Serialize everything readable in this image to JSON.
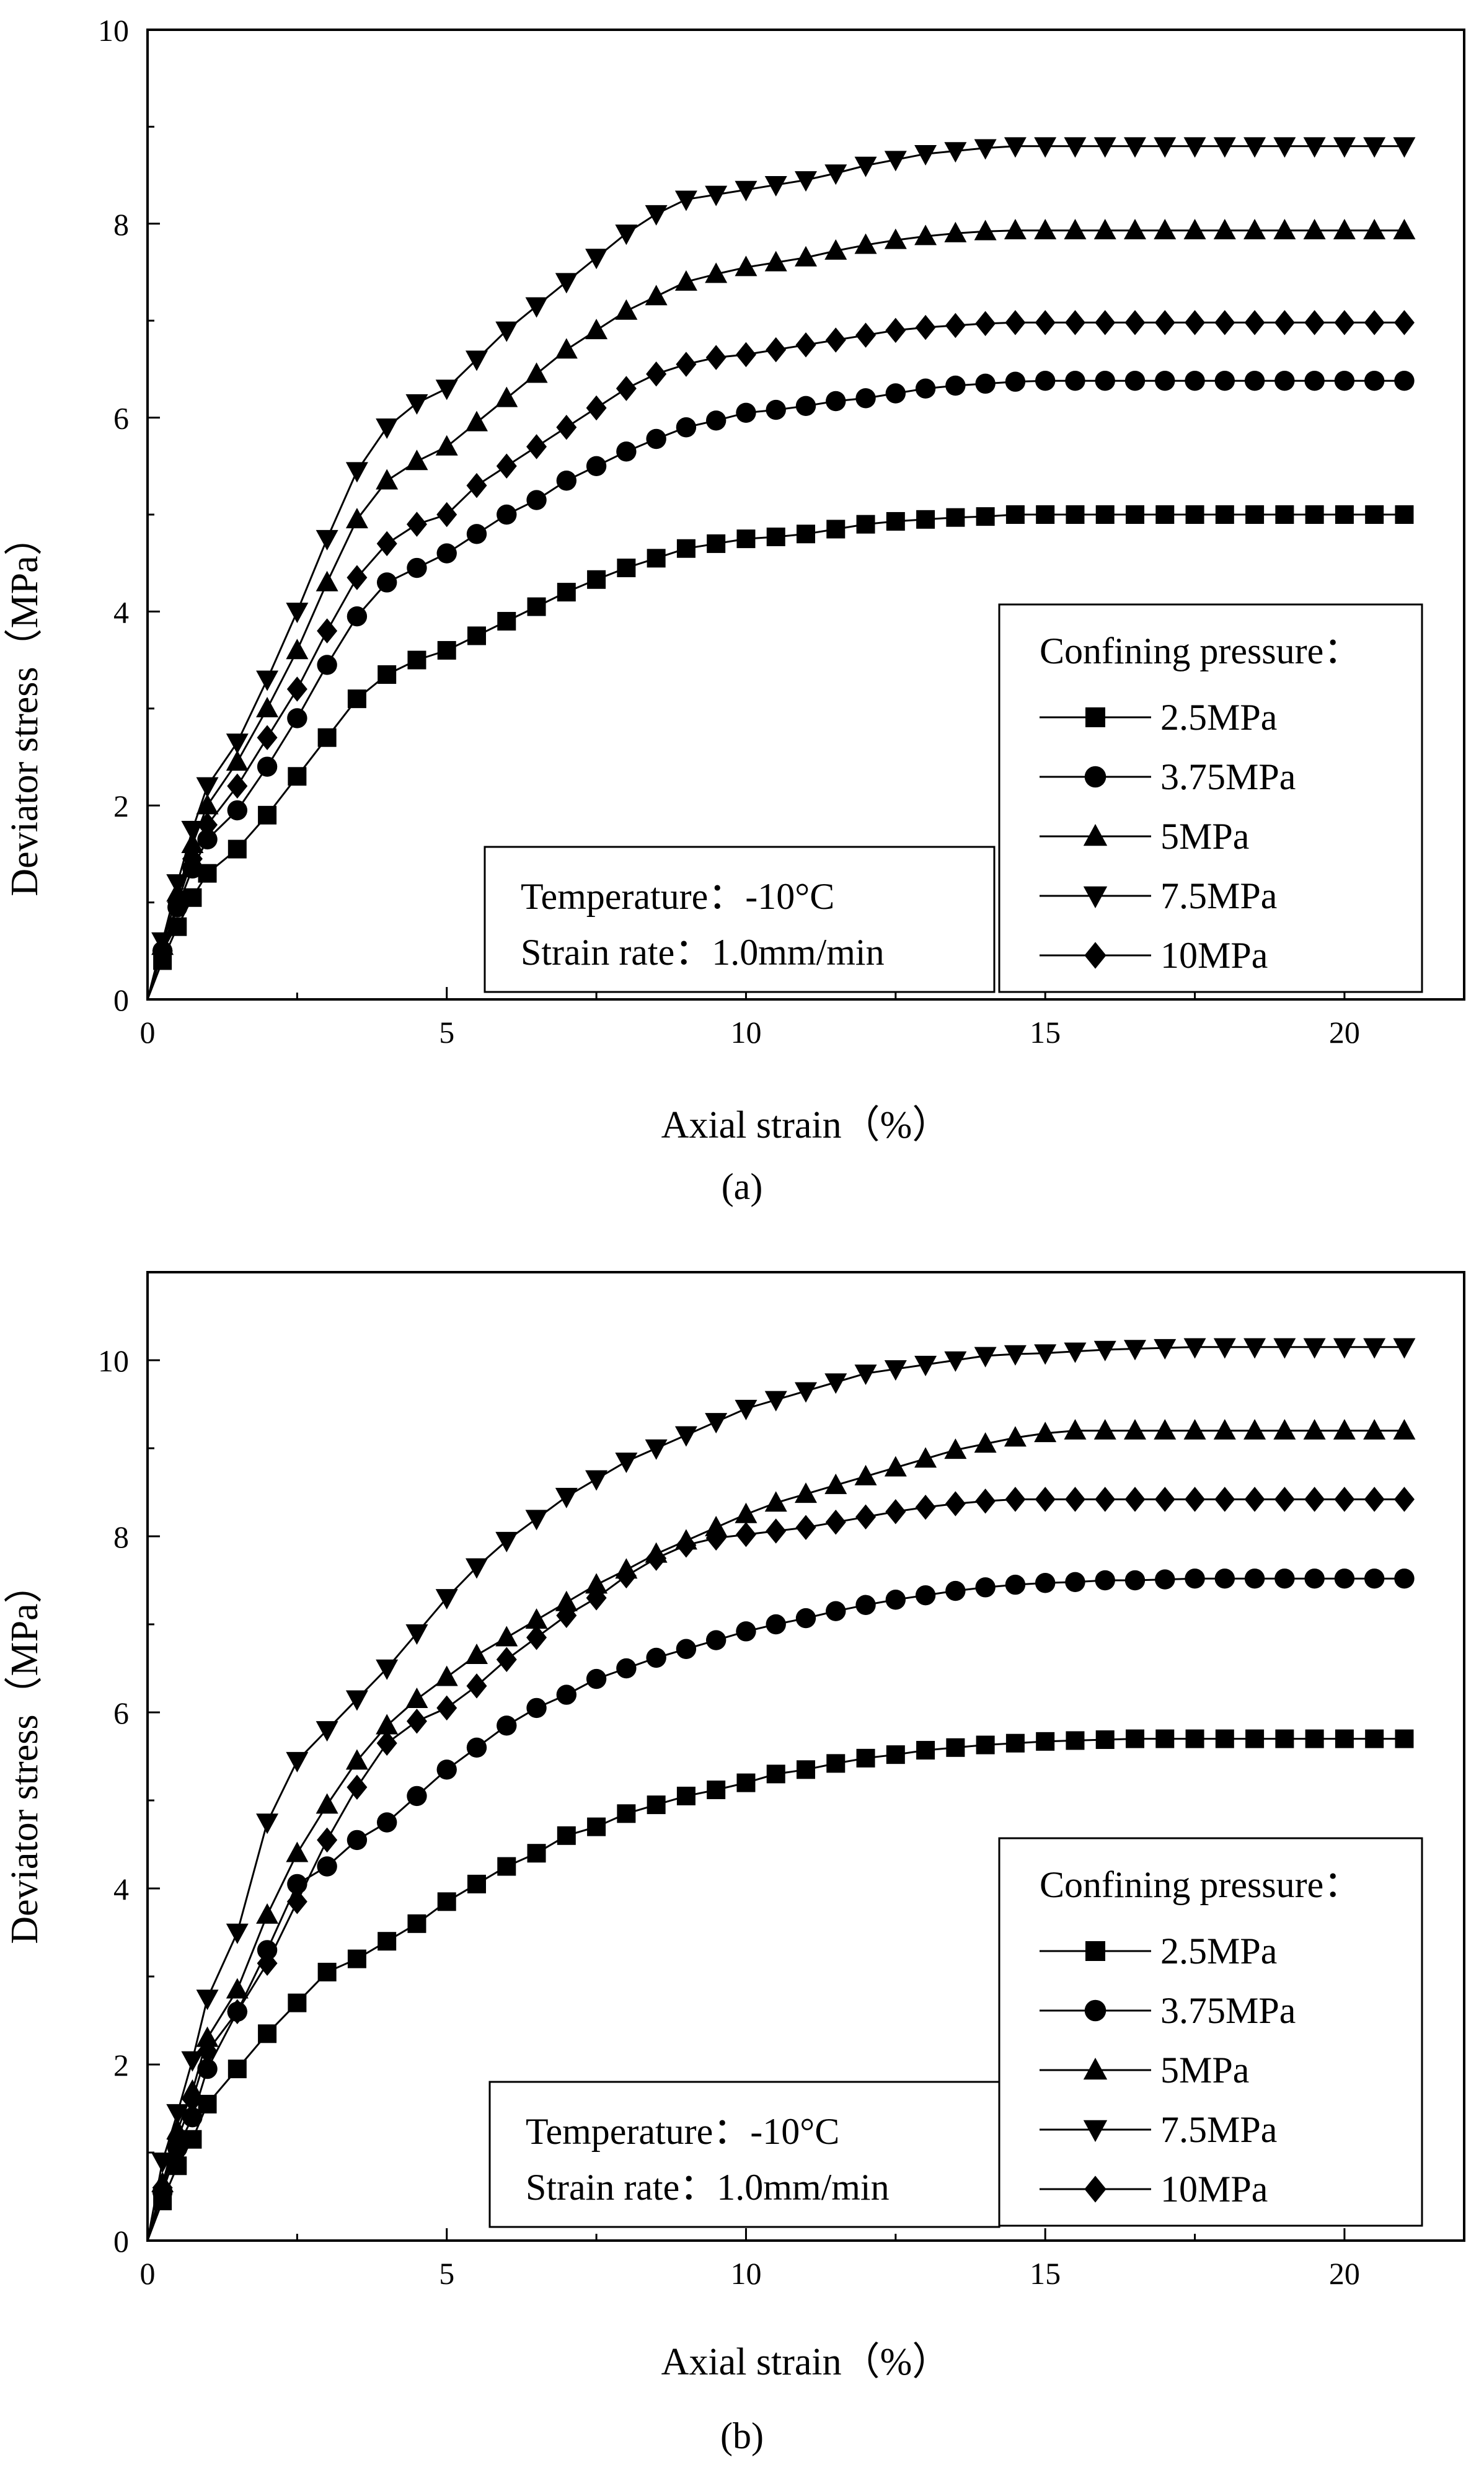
{
  "figure": {
    "panel_a_caption": "(a)",
    "panel_b_caption": "(b)"
  },
  "colors": {
    "ink": "#000000",
    "background": "#ffffff"
  },
  "chart_data": [
    {
      "type": "line",
      "panel": "(a)",
      "title": "",
      "xlabel": "Axial strain（%）",
      "ylabel": "Deviator stress（MPa）",
      "xlim": [
        0,
        22
      ],
      "ylim": [
        0,
        10
      ],
      "xticks": [
        0,
        5,
        10,
        15,
        20
      ],
      "yticks": [
        0,
        2,
        4,
        6,
        8,
        10
      ],
      "grid": false,
      "legend": {
        "title": "Confining pressure：",
        "placement": "right",
        "entries": [
          "2.5MPa",
          "3.75MPa",
          "5MPa",
          "7.5MPa",
          "10MPa"
        ]
      },
      "annotation": [
        "Temperature：-10°C",
        "Strain rate：1.0mm/min"
      ],
      "series": [
        {
          "name": "2.5MPa",
          "marker": "square",
          "x": [
            0,
            0.25,
            0.5,
            0.75,
            1,
            1.5,
            2,
            2.5,
            3,
            3.5,
            4,
            4.5,
            5,
            5.5,
            6,
            6.5,
            7,
            7.5,
            8,
            8.5,
            9,
            9.5,
            10,
            10.5,
            11,
            11.5,
            12,
            12.5,
            13,
            13.5,
            14,
            14.5,
            15,
            15.5,
            16,
            16.5,
            17,
            17.5,
            18,
            18.5,
            19,
            19.5,
            20,
            20.5,
            21
          ],
          "y": [
            0,
            0.4,
            0.75,
            1.05,
            1.3,
            1.55,
            1.9,
            2.3,
            2.7,
            3.1,
            3.35,
            3.5,
            3.6,
            3.75,
            3.9,
            4.05,
            4.2,
            4.33,
            4.45,
            4.55,
            4.65,
            4.7,
            4.75,
            4.77,
            4.8,
            4.85,
            4.9,
            4.93,
            4.95,
            4.97,
            4.98,
            5,
            5,
            5,
            5,
            5,
            5,
            5,
            5,
            5,
            5,
            5,
            5,
            5,
            5
          ]
        },
        {
          "name": "3.75MPa",
          "marker": "circle",
          "x": [
            0,
            0.25,
            0.5,
            0.75,
            1,
            1.5,
            2,
            2.5,
            3,
            3.5,
            4,
            4.5,
            5,
            5.5,
            6,
            6.5,
            7,
            7.5,
            8,
            8.5,
            9,
            9.5,
            10,
            10.5,
            11,
            11.5,
            12,
            12.5,
            13,
            13.5,
            14,
            14.5,
            15,
            15.5,
            16,
            16.5,
            17,
            17.5,
            18,
            18.5,
            19,
            19.5,
            20,
            20.5,
            21
          ],
          "y": [
            0,
            0.5,
            0.95,
            1.35,
            1.65,
            1.95,
            2.4,
            2.9,
            3.45,
            3.95,
            4.3,
            4.45,
            4.6,
            4.8,
            5,
            5.15,
            5.35,
            5.5,
            5.65,
            5.78,
            5.9,
            5.97,
            6.05,
            6.08,
            6.12,
            6.17,
            6.2,
            6.25,
            6.3,
            6.33,
            6.35,
            6.37,
            6.38,
            6.38,
            6.38,
            6.38,
            6.38,
            6.38,
            6.38,
            6.38,
            6.38,
            6.38,
            6.38,
            6.38,
            6.38
          ]
        },
        {
          "name": "5MPa",
          "marker": "triangle-up",
          "x": [
            0,
            0.25,
            0.5,
            0.75,
            1,
            1.5,
            2,
            2.5,
            3,
            3.5,
            4,
            4.5,
            5,
            5.5,
            6,
            6.5,
            7,
            7.5,
            8,
            8.5,
            9,
            9.5,
            10,
            10.5,
            11,
            11.5,
            12,
            12.5,
            13,
            13.5,
            14,
            14.5,
            15,
            15.5,
            16,
            16.5,
            17,
            17.5,
            18,
            18.5,
            19,
            19.5,
            20,
            20.5,
            21
          ],
          "y": [
            0,
            0.55,
            1.1,
            1.6,
            2,
            2.45,
            3,
            3.6,
            4.3,
            4.95,
            5.35,
            5.55,
            5.7,
            5.95,
            6.2,
            6.45,
            6.7,
            6.9,
            7.1,
            7.25,
            7.4,
            7.48,
            7.55,
            7.6,
            7.65,
            7.72,
            7.78,
            7.83,
            7.87,
            7.9,
            7.92,
            7.93,
            7.93,
            7.93,
            7.93,
            7.93,
            7.93,
            7.93,
            7.93,
            7.93,
            7.93,
            7.93,
            7.93,
            7.93,
            7.93
          ]
        },
        {
          "name": "7.5MPa",
          "marker": "triangle-down",
          "x": [
            0,
            0.25,
            0.5,
            0.75,
            1,
            1.5,
            2,
            2.5,
            3,
            3.5,
            4,
            4.5,
            5,
            5.5,
            6,
            6.5,
            7,
            7.5,
            8,
            8.5,
            9,
            9.5,
            10,
            10.5,
            11,
            11.5,
            12,
            12.5,
            13,
            13.5,
            14,
            14.5,
            15,
            15.5,
            16,
            16.5,
            17,
            17.5,
            18,
            18.5,
            19,
            19.5,
            20,
            20.5,
            21
          ],
          "y": [
            0,
            0.6,
            1.2,
            1.75,
            2.2,
            2.65,
            3.3,
            4,
            4.75,
            5.45,
            5.9,
            6.15,
            6.3,
            6.6,
            6.9,
            7.15,
            7.4,
            7.65,
            7.9,
            8.1,
            8.25,
            8.3,
            8.35,
            8.4,
            8.45,
            8.52,
            8.6,
            8.66,
            8.72,
            8.75,
            8.78,
            8.8,
            8.8,
            8.8,
            8.8,
            8.8,
            8.8,
            8.8,
            8.8,
            8.8,
            8.8,
            8.8,
            8.8,
            8.8,
            8.8
          ]
        },
        {
          "name": "10MPa",
          "marker": "diamond",
          "x": [
            0,
            0.25,
            0.5,
            0.75,
            1,
            1.5,
            2,
            2.5,
            3,
            3.5,
            4,
            4.5,
            5,
            5.5,
            6,
            6.5,
            7,
            7.5,
            8,
            8.5,
            9,
            9.5,
            10,
            10.5,
            11,
            11.5,
            12,
            12.5,
            13,
            13.5,
            14,
            14.5,
            15,
            15.5,
            16,
            16.5,
            17,
            17.5,
            18,
            18.5,
            19,
            19.5,
            20,
            20.5,
            21
          ],
          "y": [
            0,
            0.5,
            1,
            1.45,
            1.8,
            2.2,
            2.7,
            3.2,
            3.8,
            4.35,
            4.7,
            4.9,
            5,
            5.3,
            5.5,
            5.7,
            5.9,
            6.1,
            6.3,
            6.45,
            6.55,
            6.62,
            6.65,
            6.7,
            6.75,
            6.8,
            6.85,
            6.9,
            6.93,
            6.95,
            6.97,
            6.98,
            6.98,
            6.98,
            6.98,
            6.98,
            6.98,
            6.98,
            6.98,
            6.98,
            6.98,
            6.98,
            6.98,
            6.98,
            6.98
          ]
        }
      ]
    },
    {
      "type": "line",
      "panel": "(b)",
      "title": "",
      "xlabel": "Axial strain（%）",
      "ylabel": "Deviator stress（MPa）",
      "xlim": [
        0,
        22
      ],
      "ylim": [
        0,
        11
      ],
      "xticks": [
        0,
        5,
        10,
        15,
        20
      ],
      "yticks": [
        0,
        2,
        4,
        6,
        8,
        10
      ],
      "grid": false,
      "legend": {
        "title": "Confining pressure：",
        "placement": "right",
        "entries": [
          "2.5MPa",
          "3.75MPa",
          "5MPa",
          "7.5MPa",
          "10MPa"
        ]
      },
      "annotation": [
        "Temperature：-10°C",
        "Strain rate：1.0mm/min"
      ],
      "series": [
        {
          "name": "2.5MPa",
          "marker": "square",
          "x": [
            0,
            0.25,
            0.5,
            0.75,
            1,
            1.5,
            2,
            2.5,
            3,
            3.5,
            4,
            4.5,
            5,
            5.5,
            6,
            6.5,
            7,
            7.5,
            8,
            8.5,
            9,
            9.5,
            10,
            10.5,
            11,
            11.5,
            12,
            12.5,
            13,
            13.5,
            14,
            14.5,
            15,
            15.5,
            16,
            16.5,
            17,
            17.5,
            18,
            18.5,
            19,
            19.5,
            20,
            20.5,
            21
          ],
          "y": [
            0,
            0.45,
            0.85,
            1.15,
            1.55,
            1.95,
            2.35,
            2.7,
            3.05,
            3.2,
            3.4,
            3.6,
            3.85,
            4.05,
            4.25,
            4.4,
            4.6,
            4.7,
            4.85,
            4.95,
            5.05,
            5.12,
            5.2,
            5.3,
            5.35,
            5.42,
            5.48,
            5.52,
            5.57,
            5.6,
            5.63,
            5.65,
            5.67,
            5.68,
            5.69,
            5.7,
            5.7,
            5.7,
            5.7,
            5.7,
            5.7,
            5.7,
            5.7,
            5.7,
            5.7
          ]
        },
        {
          "name": "3.75MPa",
          "marker": "circle",
          "x": [
            0,
            0.25,
            0.5,
            0.75,
            1,
            1.5,
            2,
            2.5,
            3,
            3.5,
            4,
            4.5,
            5,
            5.5,
            6,
            6.5,
            7,
            7.5,
            8,
            8.5,
            9,
            9.5,
            10,
            10.5,
            11,
            11.5,
            12,
            12.5,
            13,
            13.5,
            14,
            14.5,
            15,
            15.5,
            16,
            16.5,
            17,
            17.5,
            18,
            18.5,
            19,
            19.5,
            20,
            20.5,
            21
          ],
          "y": [
            0,
            0.55,
            1.05,
            1.4,
            1.95,
            2.6,
            3.3,
            4.05,
            4.25,
            4.55,
            4.75,
            5.05,
            5.35,
            5.6,
            5.85,
            6.05,
            6.2,
            6.38,
            6.5,
            6.62,
            6.72,
            6.82,
            6.92,
            7,
            7.07,
            7.15,
            7.22,
            7.28,
            7.33,
            7.38,
            7.42,
            7.45,
            7.47,
            7.48,
            7.5,
            7.5,
            7.51,
            7.52,
            7.52,
            7.52,
            7.52,
            7.52,
            7.52,
            7.52,
            7.52
          ]
        },
        {
          "name": "5MPa",
          "marker": "triangle-up",
          "x": [
            0,
            0.25,
            0.5,
            0.75,
            1,
            1.5,
            2,
            2.5,
            3,
            3.5,
            4,
            4.5,
            5,
            5.5,
            6,
            6.5,
            7,
            7.5,
            8,
            8.5,
            9,
            9.5,
            10,
            10.5,
            11,
            11.5,
            12,
            12.5,
            13,
            13.5,
            14,
            14.5,
            15,
            15.5,
            16,
            16.5,
            17,
            17.5,
            18,
            18.5,
            19,
            19.5,
            20,
            20.5,
            21
          ],
          "y": [
            0,
            0.65,
            1.25,
            1.7,
            2.3,
            2.85,
            3.7,
            4.4,
            4.95,
            5.45,
            5.85,
            6.15,
            6.4,
            6.65,
            6.85,
            7.05,
            7.25,
            7.45,
            7.62,
            7.8,
            7.95,
            8.1,
            8.25,
            8.38,
            8.48,
            8.58,
            8.68,
            8.78,
            8.88,
            8.98,
            9.05,
            9.12,
            9.17,
            9.2,
            9.2,
            9.2,
            9.2,
            9.2,
            9.2,
            9.2,
            9.2,
            9.2,
            9.2,
            9.2,
            9.2
          ]
        },
        {
          "name": "7.5MPa",
          "marker": "triangle-down",
          "x": [
            0,
            0.25,
            0.5,
            0.75,
            1,
            1.5,
            2,
            2.5,
            3,
            3.5,
            4,
            4.5,
            5,
            5.5,
            6,
            6.5,
            7,
            7.5,
            8,
            8.5,
            9,
            9.5,
            10,
            10.5,
            11,
            11.5,
            12,
            12.5,
            13,
            13.5,
            14,
            14.5,
            15,
            15.5,
            16,
            16.5,
            17,
            17.5,
            18,
            18.5,
            19,
            19.5,
            20,
            20.5,
            21
          ],
          "y": [
            0,
            0.9,
            1.45,
            2.05,
            2.75,
            3.5,
            4.75,
            5.45,
            5.8,
            6.15,
            6.5,
            6.9,
            7.3,
            7.65,
            7.95,
            8.2,
            8.45,
            8.65,
            8.85,
            9,
            9.15,
            9.3,
            9.45,
            9.55,
            9.65,
            9.75,
            9.85,
            9.9,
            9.95,
            10,
            10.05,
            10.07,
            10.08,
            10.1,
            10.12,
            10.13,
            10.14,
            10.15,
            10.15,
            10.15,
            10.15,
            10.15,
            10.15,
            10.15,
            10.15
          ]
        },
        {
          "name": "10MPa",
          "marker": "diamond",
          "x": [
            0,
            0.25,
            0.5,
            0.75,
            1,
            1.5,
            2,
            2.5,
            3,
            3.5,
            4,
            4.5,
            5,
            5.5,
            6,
            6.5,
            7,
            7.5,
            8,
            8.5,
            9,
            9.5,
            10,
            10.5,
            11,
            11.5,
            12,
            12.5,
            13,
            13.5,
            14,
            14.5,
            15,
            15.5,
            16,
            16.5,
            17,
            17.5,
            18,
            18.5,
            19,
            19.5,
            20,
            20.5,
            21
          ],
          "y": [
            0,
            0.6,
            1.15,
            1.6,
            2.15,
            2.6,
            3.15,
            3.85,
            4.55,
            5.15,
            5.65,
            5.9,
            6.05,
            6.3,
            6.6,
            6.85,
            7.1,
            7.3,
            7.55,
            7.75,
            7.9,
            7.98,
            8.02,
            8.06,
            8.1,
            8.16,
            8.22,
            8.28,
            8.33,
            8.37,
            8.4,
            8.42,
            8.42,
            8.42,
            8.42,
            8.42,
            8.42,
            8.42,
            8.42,
            8.42,
            8.42,
            8.42,
            8.42,
            8.42,
            8.42
          ]
        }
      ]
    }
  ]
}
